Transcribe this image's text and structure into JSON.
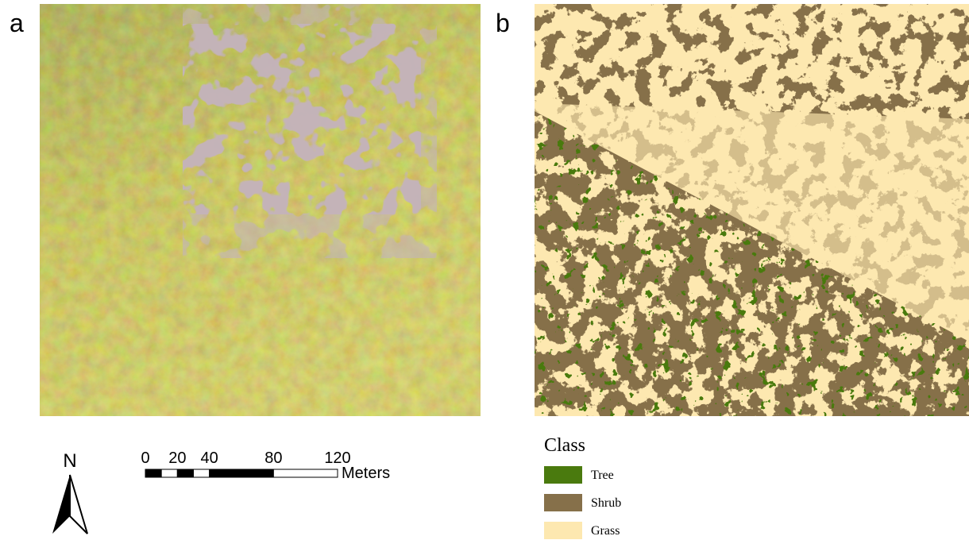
{
  "panels": [
    {
      "label": "a"
    },
    {
      "label": "b"
    }
  ],
  "north_arrow": {
    "label": "N"
  },
  "scale_bar": {
    "ticks": [
      0,
      20,
      40,
      80,
      120
    ],
    "unit": "Meters"
  },
  "legend": {
    "title": "Class",
    "items": [
      {
        "label": "Tree",
        "color": "#4a7a0e"
      },
      {
        "label": "Shrub",
        "color": "#86704a"
      },
      {
        "label": "Grass",
        "color": "#fde8b0"
      }
    ]
  }
}
